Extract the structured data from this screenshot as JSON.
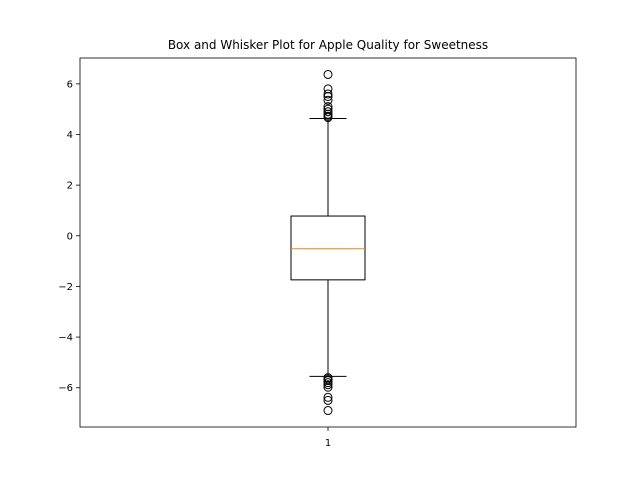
{
  "chart_data": {
    "type": "box",
    "title": "Box and Whisker Plot for Apple Quality for Sweetness",
    "xlabel": "",
    "ylabel": "",
    "categories": [
      "1"
    ],
    "ylim": [
      -7.55,
      7.02
    ],
    "yticks": [
      -6,
      -4,
      -2,
      0,
      2,
      4,
      6
    ],
    "ytick_labels": [
      "−6",
      "−4",
      "−2",
      "0",
      "2",
      "4",
      "6"
    ],
    "grid": false,
    "boxes": [
      {
        "label": "1",
        "whisker_low": -5.55,
        "q1": -1.74,
        "median": -0.51,
        "q3": 0.78,
        "whisker_high": 4.63,
        "outliers_high": [
          4.67,
          4.72,
          4.8,
          4.9,
          5.0,
          5.1,
          5.35,
          5.5,
          5.6,
          5.8,
          6.37
        ],
        "outliers_low": [
          -5.6,
          -5.65,
          -5.72,
          -5.8,
          -5.88,
          -5.98,
          -6.38,
          -6.5,
          -6.9
        ]
      }
    ],
    "colors": {
      "box": "#000000",
      "median": "#ff7f0e",
      "flier": "#000000"
    }
  }
}
